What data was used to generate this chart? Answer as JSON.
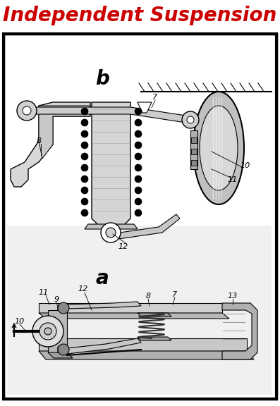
{
  "title": "Independent Suspension",
  "title_color": "#CC0000",
  "title_fontsize": 20,
  "title_fontweight": "bold",
  "title_fontstyle": "italic",
  "background_color": "#ffffff",
  "border_color": "#000000",
  "border_linewidth": 2.0,
  "fig_width": 3.97,
  "fig_height": 5.76,
  "dpi": 100
}
